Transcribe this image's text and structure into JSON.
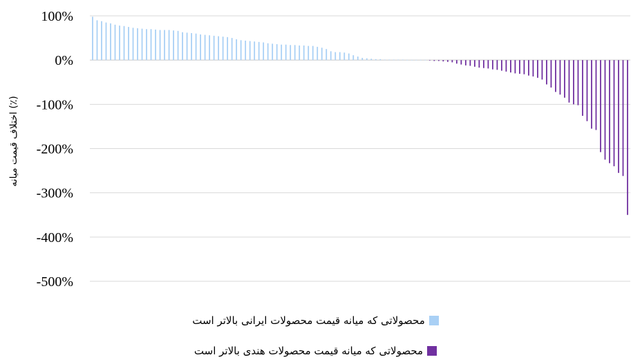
{
  "chart_data": {
    "type": "bar",
    "ylabel": "اختلاف قیمت میانه (٪)",
    "ylim": [
      -500,
      100
    ],
    "yticks": [
      100,
      0,
      -100,
      -200,
      -300,
      -400,
      -500
    ],
    "ytick_labels": [
      "100%",
      "0%",
      "-100%",
      "-200%",
      "-300%",
      "-400%",
      "-500%"
    ],
    "grid": true,
    "legend_position": "bottom",
    "series": [
      {
        "name": "محصولاتی که میانه قیمت محصولات ایرانی بالاتر است",
        "color": "#a9d0f5",
        "values": [
          98,
          90,
          88,
          85,
          83,
          80,
          78,
          77,
          75,
          73,
          72,
          71,
          70,
          70,
          69,
          68,
          68,
          68,
          67,
          66,
          63,
          62,
          61,
          60,
          58,
          57,
          56,
          55,
          54,
          53,
          52,
          50,
          47,
          45,
          44,
          43,
          42,
          41,
          40,
          38,
          37,
          36,
          35,
          35,
          34,
          34,
          33,
          33,
          32,
          32,
          30,
          28,
          25,
          20,
          18,
          18,
          17,
          15,
          11,
          8,
          5,
          4,
          3,
          2,
          2,
          1,
          1,
          1,
          1,
          1,
          0.5,
          0.5,
          0.5,
          0.5,
          0.5
        ]
      },
      {
        "name": "محصولاتی که میانه قیمت محصولات هندی بالاتر است",
        "color": "#7030a0",
        "values": [
          -1,
          -2,
          -2,
          -3,
          -4,
          -5,
          -8,
          -10,
          -12,
          -13,
          -15,
          -17,
          -18,
          -19,
          -21,
          -22,
          -24,
          -26,
          -28,
          -30,
          -31,
          -32,
          -35,
          -37,
          -40,
          -44,
          -55,
          -62,
          -72,
          -78,
          -85,
          -96,
          -100,
          -102,
          -126,
          -138,
          -155,
          -158,
          -208,
          -225,
          -233,
          -240,
          -255,
          -262,
          -350
        ]
      }
    ]
  }
}
